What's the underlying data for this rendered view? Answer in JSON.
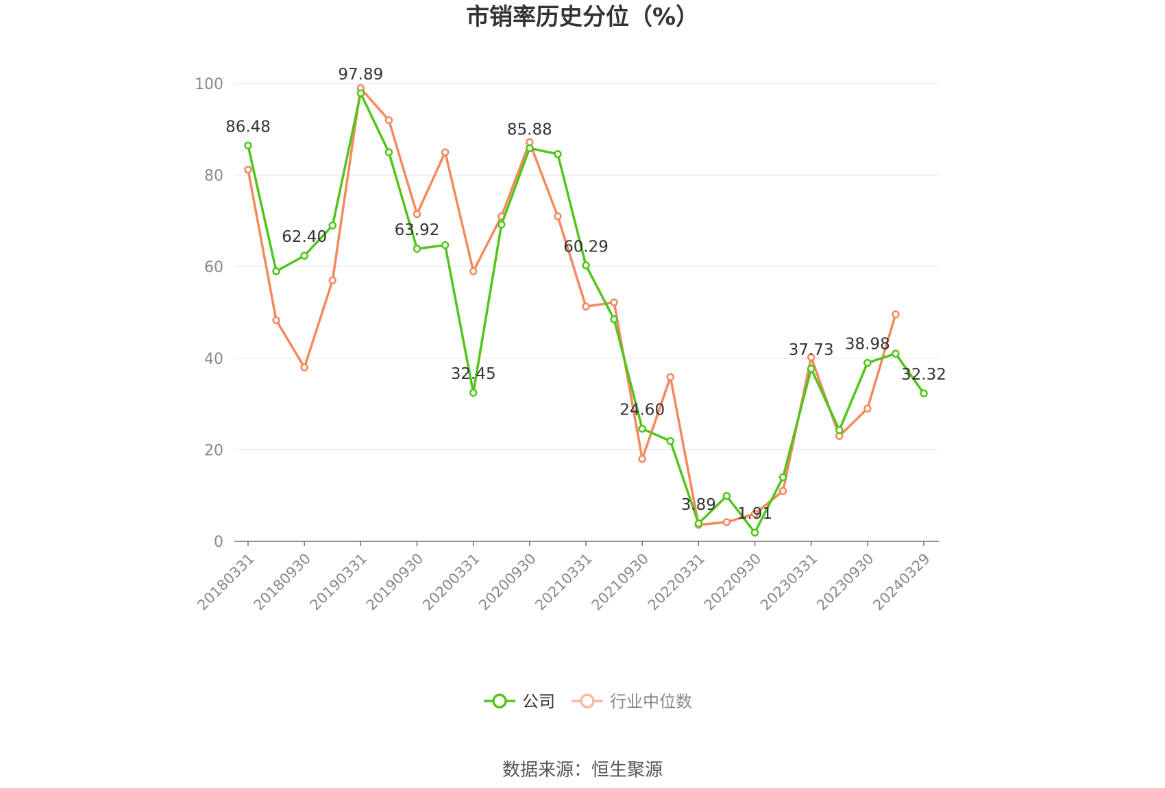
{
  "chart_data": {
    "type": "line",
    "title": "市销率历史分位（%）",
    "source": "数据来源：恒生聚源",
    "ylim": [
      0,
      100
    ],
    "yticks": [
      0,
      20,
      40,
      60,
      80,
      100
    ],
    "x": [
      "20180331",
      "20180630",
      "20180930",
      "20181231",
      "20190331",
      "20190630",
      "20190930",
      "20191231",
      "20200331",
      "20200630",
      "20200930",
      "20201231",
      "20210331",
      "20210630",
      "20210930",
      "20211231",
      "20220331",
      "20220630",
      "20220930",
      "20221231",
      "20230331",
      "20230630",
      "20230930",
      "20231231",
      "20240329"
    ],
    "x_tick_labels": [
      "20180331",
      "20180930",
      "20190331",
      "20190930",
      "20200331",
      "20200930",
      "20210331",
      "20210930",
      "20220331",
      "20220930",
      "20230331",
      "20230930",
      "20240329"
    ],
    "grid": true,
    "legend_position": "bottom",
    "series": [
      {
        "name": "公司",
        "color": "#52c41a",
        "values": [
          86.48,
          59.0,
          62.4,
          69.0,
          97.89,
          85.0,
          63.92,
          64.7,
          32.45,
          69.2,
          85.88,
          84.6,
          60.29,
          48.5,
          24.6,
          21.9,
          3.89,
          9.9,
          1.91,
          14.0,
          37.73,
          24.3,
          38.98,
          41.0,
          32.32
        ],
        "labels": [
          "86.48",
          null,
          "62.40",
          null,
          "97.89",
          null,
          "63.92",
          null,
          "32.45",
          null,
          "85.88",
          null,
          "60.29",
          null,
          "24.60",
          null,
          "3.89",
          null,
          "1.91",
          null,
          "37.73",
          null,
          "38.98",
          null,
          "32.32"
        ]
      },
      {
        "name": "行业中位数",
        "color": "#f4895f",
        "values": [
          81.2,
          48.3,
          38.0,
          57.0,
          99.0,
          92.0,
          71.5,
          85.0,
          59.0,
          71.0,
          87.2,
          71.0,
          51.3,
          52.2,
          18.0,
          35.9,
          3.6,
          4.2,
          6.0,
          11.0,
          40.2,
          23.0,
          29.0,
          49.6,
          null
        ]
      }
    ]
  }
}
